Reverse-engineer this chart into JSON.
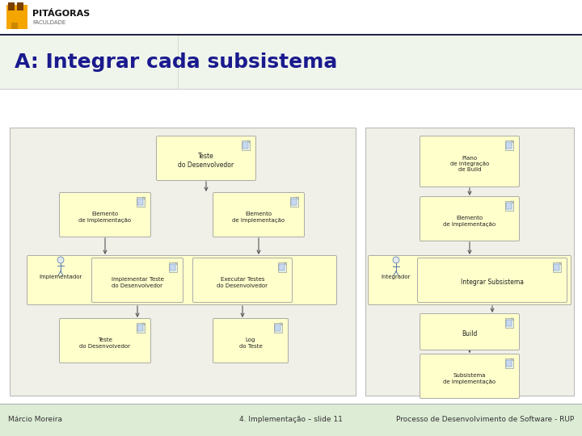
{
  "title": "A: Integrar cada subsistema",
  "title_color": "#1a1a8e",
  "title_fontsize": 18,
  "bg_color": "#ffffff",
  "header_bg_top": "#f0f5ec",
  "header_bg_bot": "#d8ecd0",
  "footer_bg": "#ddecd5",
  "footer_line1": "Márcio Moreira",
  "footer_line2": "4. Implementação – slide 11",
  "footer_line3": "Processo de Desenvolvimento de Software - RUP",
  "box_fill": "#ffffcc",
  "box_edge": "#bbbb88",
  "diag_bg": "#f0f0e8",
  "diag_edge": "#bbbbbb",
  "arrow_color": "#555555",
  "logo_orange": "#f5a500",
  "logo_dark": "#333333"
}
